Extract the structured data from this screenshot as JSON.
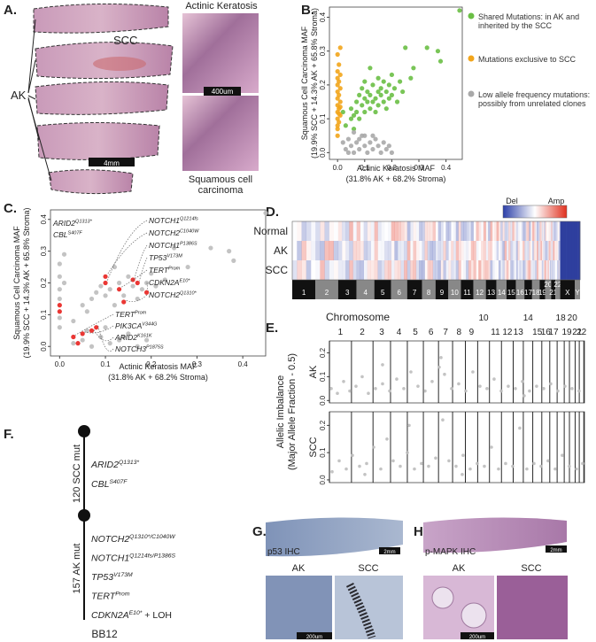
{
  "panel_labels": {
    "a": "A.",
    "b": "B.",
    "c": "C.",
    "d": "D.",
    "e": "E.",
    "f": "F.",
    "g": "G.",
    "h": "H."
  },
  "panel_a": {
    "scc_label": "SCC",
    "ak_label": "AK",
    "scale_bar": "4mm",
    "top_title": "Actinic Keratosis",
    "top_scale_bar": "400um",
    "bottom_title": "Squamous cell carcinoma"
  },
  "chart_data": [
    {
      "type": "scatter",
      "xlim": [
        -0.03,
        0.46
      ],
      "ylim": [
        -0.02,
        0.43
      ],
      "xticks": [
        {
          "value": 0,
          "label": "0.0"
        },
        0.1,
        0.2,
        0.3,
        0.4
      ],
      "yticks": [
        {
          "value": 0,
          "label": "0.0"
        },
        0.1,
        0.2,
        0.3,
        0.4
      ],
      "xlabel": [
        "Actinic Keratosis MAF",
        "(31.8% AK + 68.2% Stroma)"
      ],
      "ylabel": [
        "Squamous Cell Carcinoma MAF",
        "(19.9% SCC + 14.3% AK + 65.8% Stroma)"
      ],
      "series": [
        {
          "name": "Shared Mutations: in AK and inherited by the SCC",
          "color": "#6abf45",
          "x": [
            0.03,
            0.05,
            0.05,
            0.06,
            0.07,
            0.07,
            0.08,
            0.08,
            0.09,
            0.09,
            0.1,
            0.1,
            0.1,
            0.11,
            0.11,
            0.12,
            0.12,
            0.12,
            0.13,
            0.13,
            0.14,
            0.14,
            0.15,
            0.15,
            0.15,
            0.16,
            0.16,
            0.17,
            0.17,
            0.18,
            0.18,
            0.19,
            0.19,
            0.2,
            0.2,
            0.21,
            0.22,
            0.23,
            0.24,
            0.27,
            0.28,
            0.33,
            0.37,
            0.38,
            0.45,
            0.25,
            0.06,
            0.02
          ],
          "values": [
            0.08,
            0.1,
            0.13,
            0.11,
            0.15,
            0.12,
            0.17,
            0.1,
            0.14,
            0.19,
            0.12,
            0.16,
            0.21,
            0.15,
            0.18,
            0.13,
            0.17,
            0.25,
            0.15,
            0.2,
            0.16,
            0.12,
            0.18,
            0.22,
            0.14,
            0.17,
            0.19,
            0.15,
            0.21,
            0.18,
            0.13,
            0.16,
            0.2,
            0.17,
            0.23,
            0.19,
            0.15,
            0.21,
            0.18,
            0.22,
            0.25,
            0.31,
            0.3,
            0.27,
            0.42,
            0.31,
            0.07,
            0.12
          ]
        },
        {
          "name": "Mutations exclusive to SCC",
          "color": "#f2a51b",
          "x": [
            0,
            0,
            0.005,
            0,
            0.01,
            0,
            0.005,
            0,
            0.01,
            0,
            0.005,
            0,
            0.01,
            0,
            0.005,
            0,
            0.01,
            0,
            0.005,
            0,
            0.01,
            0,
            0.005,
            0.01
          ],
          "values": [
            0.05,
            0.07,
            0.09,
            0.1,
            0.11,
            0.12,
            0.13,
            0.14,
            0.15,
            0.16,
            0.17,
            0.18,
            0.19,
            0.2,
            0.21,
            0.22,
            0.23,
            0.24,
            0.26,
            0.29,
            0.31,
            0.08,
            0.115,
            0.135
          ]
        },
        {
          "name": "Low allele frequency mutations: possibly from unrelated clones",
          "color": "#a9a9a9",
          "x": [
            0.02,
            0.03,
            0.04,
            0.05,
            0.06,
            0.07,
            0.08,
            0.09,
            0.1,
            0.11,
            0.12,
            0.13,
            0.14,
            0.15,
            0.16,
            0.17,
            0.18,
            0.19,
            0.2,
            0.08,
            0.04,
            0.1,
            0.06,
            0.13
          ],
          "values": [
            0.03,
            0.01,
            0.04,
            0.02,
            0,
            0.03,
            0.01,
            0.05,
            0.02,
            0,
            0.03,
            0.01,
            0.04,
            0.02,
            0,
            0.03,
            0.01,
            0.02,
            0,
            0.04,
            0,
            0.05,
            0.06,
            0.05
          ]
        }
      ]
    },
    {
      "type": "scatter",
      "xlim": [
        -0.02,
        0.45
      ],
      "ylim": [
        -0.03,
        0.43
      ],
      "xticks": [
        {
          "value": 0,
          "label": "0.0"
        },
        0.1,
        0.2,
        0.3,
        0.4
      ],
      "yticks": [
        {
          "value": 0,
          "label": "0.0"
        },
        0.1,
        0.2,
        0.3,
        0.4
      ],
      "xlabel": [
        "Actinic Keratosis MAF",
        "(31.8% AK + 68.2% Stroma)"
      ],
      "ylabel": [
        "Squamous Cell Carcinoma MAF",
        "(19.9% SCC + 14.3% AK + 65.8% Stroma)"
      ],
      "series": [
        {
          "color": "#bdbdbd",
          "x": [
            0.03,
            0.05,
            0.06,
            0.07,
            0.08,
            0.09,
            0.1,
            0.11,
            0.12,
            0.12,
            0.13,
            0.14,
            0.15,
            0.16,
            0.17,
            0.18,
            0.19,
            0.2,
            0.21,
            0.23,
            0.25,
            0.28,
            0.33,
            0.37,
            0.38,
            0.45,
            0,
            0,
            0,
            0,
            0,
            0,
            0.01,
            0.01,
            0.03,
            0.05,
            0.07,
            0.09,
            0.11,
            0.13,
            0.15,
            0.17,
            0.19,
            0.06,
            0.1,
            0.14
          ],
          "values": [
            0.08,
            0.13,
            0.11,
            0.15,
            0.17,
            0.19,
            0.16,
            0.18,
            0.13,
            0.25,
            0.2,
            0.16,
            0.22,
            0.19,
            0.15,
            0.18,
            0.2,
            0.23,
            0.19,
            0.21,
            0.31,
            0.25,
            0.31,
            0.3,
            0.27,
            0.42,
            0.06,
            0.09,
            0.15,
            0.18,
            0.22,
            0.26,
            0.2,
            0.29,
            0.01,
            0.02,
            0,
            0.03,
            0.01,
            0.02,
            0.04,
            0,
            0.02,
            0.05,
            0.06,
            0.03
          ]
        },
        {
          "color": "#e8211e",
          "x": [
            0,
            0,
            0.1,
            0.1,
            0.13,
            0.14,
            0.16,
            0.17,
            0.19,
            0.03,
            0.05,
            0.07,
            0.08,
            0.04
          ],
          "values": [
            0.11,
            0.13,
            0.2,
            0.22,
            0.18,
            0.14,
            0.21,
            0.2,
            0.17,
            0.03,
            0.04,
            0.05,
            0.06,
            0.01
          ]
        }
      ],
      "annotations": [
        {
          "name": "NOTCH1",
          "sup": "Q1214fs"
        },
        {
          "name": "NOTCH2",
          "sup": "C1040W"
        },
        {
          "name": "NOTCH1",
          "sup": "P1386S"
        },
        {
          "name": "TP53",
          "sup": "V173M"
        },
        {
          "name": "TERT",
          "sup": "Prom"
        },
        {
          "name": "CDKN2A",
          "sup": "E10*"
        },
        {
          "name": "NOTCH2",
          "sup": "Q1310*"
        },
        {
          "name": "ARID2",
          "sup": "Q1313*"
        },
        {
          "name": "CBL",
          "sup": "S407F"
        },
        {
          "name": "TERT",
          "sup": "Prom"
        },
        {
          "name": "PIK3CA",
          "sup": "V344G"
        },
        {
          "name": "ARID2",
          "sup": "K161K"
        },
        {
          "name": "NOTCH3",
          "sup": "P1875S"
        }
      ]
    },
    {
      "type": "scatter",
      "ylabel": "AK",
      "xlim": [
        0,
        2881
      ],
      "ylim": [
        -0.01,
        0.25
      ],
      "yticks": [
        {
          "value": 0,
          "label": "0.0"
        },
        0.1,
        0.2
      ],
      "series": [
        {
          "color": "#bdbdbd",
          "x": [
            20,
            90,
            160,
            230,
            300,
            370,
            440,
            520,
            600,
            680,
            760,
            840,
            920,
            1000,
            1080,
            1160,
            1240,
            1300,
            1380,
            1460,
            1540,
            1620,
            1700,
            1780,
            1860,
            1940,
            2020,
            2100,
            2180,
            2260,
            2340,
            2420,
            2500,
            2580,
            2660,
            2740,
            2820,
            1260,
            600,
            2200
          ],
          "values": [
            0.05,
            0.03,
            0.08,
            0.04,
            0.06,
            0.1,
            0.03,
            0.05,
            0.07,
            0.04,
            0.09,
            0.05,
            0.12,
            0.06,
            0.04,
            0.08,
            0.14,
            0.11,
            0.05,
            0.07,
            0.04,
            0.12,
            0.06,
            0.05,
            0.09,
            0.04,
            0.06,
            0.05,
            0.08,
            0.04,
            0.06,
            0.05,
            0.07,
            0.04,
            0.06,
            0.05,
            0.04,
            0.18,
            0.15,
            0.02
          ]
        }
      ]
    },
    {
      "type": "scatter",
      "ylabel": "SCC",
      "xlim": [
        0,
        2881
      ],
      "ylim": [
        -0.01,
        0.25
      ],
      "yticks": [
        {
          "value": 0,
          "label": "0.0"
        },
        0.1,
        0.2
      ],
      "series": [
        {
          "color": "#bdbdbd",
          "x": [
            30,
            110,
            190,
            260,
            340,
            420,
            500,
            580,
            650,
            720,
            800,
            880,
            960,
            1040,
            1120,
            1200,
            1280,
            1350,
            1430,
            1510,
            1590,
            1670,
            1750,
            1830,
            1910,
            1990,
            2070,
            2150,
            2230,
            2310,
            2390,
            2470,
            2550,
            2630,
            2710,
            2790,
            2860,
            900,
            1500,
            400
          ],
          "values": [
            0.03,
            0.07,
            0.04,
            0.09,
            0.05,
            0.06,
            0.12,
            0.04,
            0.15,
            0.07,
            0.05,
            0.1,
            0.04,
            0.06,
            0.05,
            0.08,
            0.22,
            0.07,
            0.05,
            0.09,
            0.04,
            0.06,
            0.05,
            0.12,
            0.04,
            0.06,
            0.05,
            0.19,
            0.04,
            0.06,
            0.05,
            0.07,
            0.04,
            0.09,
            0.05,
            0.04,
            0.06,
            0.2,
            0.02,
            0.02
          ]
        }
      ]
    }
  ],
  "panel_d": {
    "rows": [
      "Normal",
      "AK",
      "SCC"
    ],
    "colorbar": {
      "low": "Del",
      "high": "Amp"
    },
    "chromosomes": [
      "1",
      "2",
      "3",
      "4",
      "5",
      "6",
      "7",
      "8",
      "9",
      "10",
      "11",
      "12",
      "13",
      "14",
      "15",
      "16",
      "17",
      "18",
      "19",
      "20",
      "21",
      "22",
      "X",
      "Y"
    ]
  },
  "panel_e": {
    "title": "Chromosome",
    "ylabel": [
      "Allelic Imbalance",
      "(Major Allele Fraction - 0.5)"
    ],
    "chromosomes": [
      "1",
      "2",
      "3",
      "4",
      "5",
      "6",
      "7",
      "8",
      "9",
      "10",
      "11",
      "12",
      "13",
      "14",
      "15",
      "16",
      "17",
      "18",
      "19",
      "20",
      "21",
      "22"
    ]
  },
  "panel_f": {
    "scc_branch": "120 SCC mut",
    "ak_branch": "157 AK mut",
    "sample": "BB12",
    "scc_genes": [
      {
        "name": "ARID2",
        "sup": "Q1313*"
      },
      {
        "name": "CBL",
        "sup": "S407F"
      }
    ],
    "ak_genes": [
      {
        "name": "NOTCH2",
        "sup": "Q1310*/C1040W"
      },
      {
        "name": "NOTCH1",
        "sup": "Q1214fs/P1386S"
      },
      {
        "name": "TP53",
        "sup": "V173M"
      },
      {
        "name": "TERT",
        "sup": "Prom"
      },
      {
        "name": "CDKN2A",
        "sup": "E10*",
        "suffix": " + LOH"
      }
    ]
  },
  "panel_g": {
    "stain": "p53 IHC",
    "scale_bar": "2mm",
    "left": "AK",
    "right": "SCC",
    "detail_scale_bar": "200um"
  },
  "panel_h": {
    "stain": "p-MAPK IHC",
    "scale_bar": "2mm",
    "left": "AK",
    "right": "SCC",
    "detail_scale_bar": "200um"
  }
}
